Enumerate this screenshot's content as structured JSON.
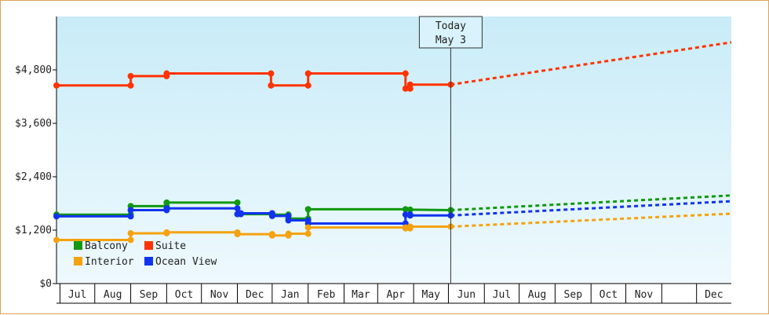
{
  "chart_data": {
    "type": "line",
    "title": "",
    "xlabel": "",
    "ylabel": "",
    "ylim": [
      0,
      6000
    ],
    "y_ticks": [
      {
        "value": 0,
        "label": "$0"
      },
      {
        "value": 1200,
        "label": "$1,200"
      },
      {
        "value": 2400,
        "label": "$2,400"
      },
      {
        "value": 3600,
        "label": "$3,600"
      },
      {
        "value": 4800,
        "label": "$4,800"
      }
    ],
    "x_range": [
      "2023-05-29",
      "2024-12-31"
    ],
    "x_ticks": [
      {
        "label": "Jul",
        "date": "2023-07-01"
      },
      {
        "label": "Aug",
        "date": "2023-08-01"
      },
      {
        "label": "Sep",
        "date": "2023-09-01"
      },
      {
        "label": "Oct",
        "date": "2023-10-01"
      },
      {
        "label": "Nov",
        "date": "2023-11-01"
      },
      {
        "label": "Dec",
        "date": "2023-12-01"
      },
      {
        "label": "Jan",
        "date": "2024-01-01"
      },
      {
        "label": "Feb",
        "date": "2024-02-01"
      },
      {
        "label": "Mar",
        "date": "2024-03-01"
      },
      {
        "label": "Apr",
        "date": "2024-04-01"
      },
      {
        "label": "May",
        "date": "2024-05-01"
      },
      {
        "label": "Jun",
        "date": "2024-06-01"
      },
      {
        "label": "Jul",
        "date": "2024-07-01"
      },
      {
        "label": "Aug",
        "date": "2024-08-01"
      },
      {
        "label": "Sep",
        "date": "2024-09-01"
      },
      {
        "label": "Oct",
        "date": "2024-10-01"
      },
      {
        "label": "Nov",
        "date": "2024-11-01"
      },
      {
        "label": "Dec",
        "date": "2024-12-01"
      }
    ],
    "today": {
      "label_line1": "Today",
      "label_line2": "May 3",
      "date": "2024-05-03"
    },
    "legend": {
      "placement": "bottom-left"
    },
    "grid": false,
    "series": [
      {
        "name": "Suite",
        "color": "#ff3300",
        "points": [
          [
            "2023-05-29",
            4450
          ],
          [
            "2023-08-01",
            4450
          ],
          [
            "2023-08-01",
            4660
          ],
          [
            "2023-09-01",
            4660
          ],
          [
            "2023-09-01",
            4720
          ],
          [
            "2023-11-30",
            4720
          ],
          [
            "2023-11-30",
            4450
          ],
          [
            "2024-01-01",
            4450
          ],
          [
            "2024-01-01",
            4720
          ],
          [
            "2024-03-25",
            4720
          ],
          [
            "2024-03-25",
            4380
          ],
          [
            "2024-03-29",
            4380
          ],
          [
            "2024-03-29",
            4470
          ],
          [
            "2024-05-03",
            4470
          ]
        ],
        "forecast": [
          [
            "2024-05-03",
            4470
          ],
          [
            "2024-12-31",
            5420
          ]
        ]
      },
      {
        "name": "Balcony",
        "color": "#119911",
        "points": [
          [
            "2023-05-29",
            1550
          ],
          [
            "2023-08-01",
            1550
          ],
          [
            "2023-08-01",
            1740
          ],
          [
            "2023-09-01",
            1740
          ],
          [
            "2023-09-01",
            1820
          ],
          [
            "2023-11-01",
            1820
          ],
          [
            "2023-11-01",
            1560
          ],
          [
            "2023-12-01",
            1560
          ],
          [
            "2023-12-01",
            1540
          ],
          [
            "2023-12-01",
            1550
          ],
          [
            "2023-12-15",
            1550
          ],
          [
            "2023-12-15",
            1460
          ],
          [
            "2024-01-01",
            1460
          ],
          [
            "2024-01-01",
            1670
          ],
          [
            "2024-03-25",
            1670
          ],
          [
            "2024-03-29",
            1660
          ],
          [
            "2024-05-03",
            1650
          ]
        ],
        "forecast": [
          [
            "2024-05-03",
            1650
          ],
          [
            "2024-12-31",
            1980
          ]
        ]
      },
      {
        "name": "Ocean View",
        "color": "#1133ee",
        "points": [
          [
            "2023-05-29",
            1510
          ],
          [
            "2023-08-01",
            1510
          ],
          [
            "2023-08-01",
            1650
          ],
          [
            "2023-09-01",
            1650
          ],
          [
            "2023-09-01",
            1690
          ],
          [
            "2023-11-01",
            1690
          ],
          [
            "2023-11-01",
            1560
          ],
          [
            "2023-11-04",
            1560
          ],
          [
            "2023-11-04",
            1580
          ],
          [
            "2023-12-01",
            1580
          ],
          [
            "2023-12-01",
            1520
          ],
          [
            "2023-12-15",
            1520
          ],
          [
            "2023-12-15",
            1420
          ],
          [
            "2024-01-01",
            1420
          ],
          [
            "2024-01-01",
            1350
          ],
          [
            "2024-03-25",
            1350
          ],
          [
            "2024-03-25",
            1550
          ],
          [
            "2024-03-29",
            1550
          ],
          [
            "2024-03-29",
            1530
          ],
          [
            "2024-05-03",
            1530
          ]
        ],
        "forecast": [
          [
            "2024-05-03",
            1530
          ],
          [
            "2024-12-31",
            1850
          ]
        ]
      },
      {
        "name": "Interior",
        "color": "#f5a20f",
        "points": [
          [
            "2023-05-29",
            980
          ],
          [
            "2023-08-01",
            980
          ],
          [
            "2023-08-01",
            1130
          ],
          [
            "2023-09-01",
            1130
          ],
          [
            "2023-09-01",
            1150
          ],
          [
            "2023-11-01",
            1150
          ],
          [
            "2023-11-01",
            1110
          ],
          [
            "2023-12-01",
            1110
          ],
          [
            "2023-12-01",
            1080
          ],
          [
            "2023-12-15",
            1080
          ],
          [
            "2023-12-15",
            1120
          ],
          [
            "2024-01-01",
            1120
          ],
          [
            "2024-01-01",
            1260
          ],
          [
            "2024-03-25",
            1260
          ],
          [
            "2024-03-25",
            1240
          ],
          [
            "2024-03-29",
            1240
          ],
          [
            "2024-03-29",
            1280
          ],
          [
            "2024-05-03",
            1280
          ]
        ],
        "forecast": [
          [
            "2024-05-03",
            1280
          ],
          [
            "2024-12-31",
            1570
          ]
        ]
      }
    ],
    "legend_order": [
      "Balcony",
      "Suite",
      "Interior",
      "Ocean View"
    ]
  }
}
